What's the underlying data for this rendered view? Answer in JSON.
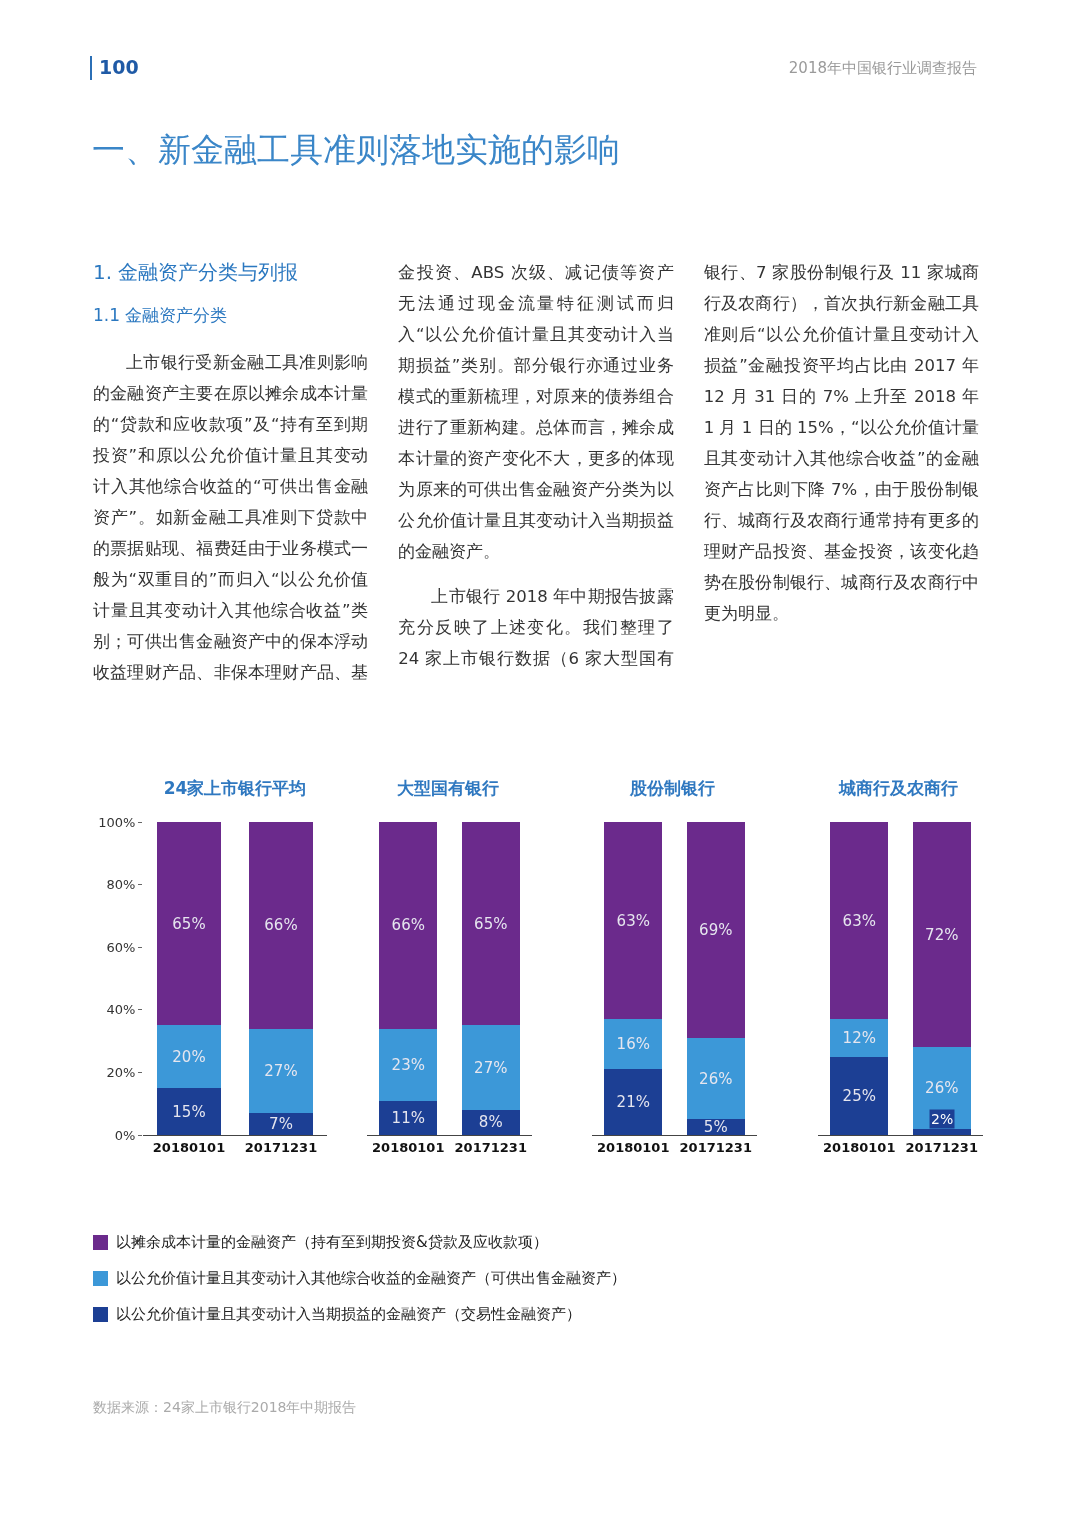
{
  "chart_data": [
    {
      "type": "other",
      "title": "一、新金融工具准则落地实施的影响",
      "annotations": [
        "100",
        "2018年中国银行业调查报告",
        "1. 金融资产分类与列报",
        "1.1 金融资产分类",
        "上市银行受新金融工具准则影响的金融资产主要在原以摊余成本计量的“贷款和应收款项”及“持有至到期投资”和原以公允价值计量且其变动计入其他综合收益的“可供出售金融资产”。如新金融工具准则下贷款中的票据贴现、福费廷由于业务模式一般为“双重目的”而归入“以公允价值计量且其变动计入其他综合收益”类别；可供出售金融资产中的保本浮动收益理财产品、非保本理财产品、基金投资、ABS 次级、减记债等资产无法通过现金流量特征测试而归入“以公允价值计量且其变动计入当期损益”类别。部分银行亦通过业务模式的重新梳理，对原来的债券组合进行了重新构建。总体而言，摊余成本计量的资产变化不大，更多的体现为原来的可供出售金融资产分类为以公允价值计量且其变动计入当期损益的金融资产。",
        "上市银行 2018 年中期报告披露充分反映了上述变化。我们整理了 24 家上市银行数据（6 家大型国有银行、7 家股份制银行及 11 家城商行及农商行），首次执行新金融工具准则后“以公允价值计量且变动计入损益”金融投资平均占比由 2017 年 12 月 31 日的 7% 上升至 2018 年 1 月 1 日的 15%，“以公允价值计量且其变动计入其他综合收益”的金融资产占比则下降 7%，由于股份制银行、城商行及农商行通常持有更多的理财产品投资、基金投资，该变化趋势在股份制银行、城商行及农商行中更为明显。",
        "数据来源：24家上市银行2018年中期报告"
      ]
    },
    {
      "type": "bar",
      "title": "24家上市银行平均",
      "categories": [
        "20180101",
        "20171231"
      ],
      "stacked": true,
      "legend": "bottom",
      "ylim": [
        0,
        100
      ],
      "yticks": [
        {
          "value": 0,
          "label": "0%"
        },
        {
          "value": 20,
          "label": "20%"
        },
        {
          "value": 40,
          "label": "40%"
        },
        {
          "value": 60,
          "label": "60%"
        },
        {
          "value": 80,
          "label": "80%"
        },
        {
          "value": 100,
          "label": "100%"
        }
      ],
      "series": [
        {
          "name": "以公允价值计量且其变动计入当期损益的金融资产（交易性金融资产）",
          "color": "#1c3f94",
          "values": [
            15,
            7
          ],
          "value_labels": [
            "15%",
            "7%"
          ]
        },
        {
          "name": "以公允价值计量且其变动计入其他综合收益的金融资产（可供出售金融资产）",
          "color": "#3c98d8",
          "values": [
            20,
            27
          ],
          "value_labels": [
            "20%",
            "27%"
          ]
        },
        {
          "name": "以摊余成本计量的金融资产（持有至到期投资&贷款及应收款项）",
          "color": "#6b2a8c",
          "values": [
            65,
            66
          ],
          "value_labels": [
            "65%",
            "66%"
          ]
        }
      ]
    },
    {
      "type": "bar",
      "title": "大型国有银行",
      "categories": [
        "20180101",
        "20171231"
      ],
      "stacked": true,
      "tick_labels": "x",
      "ylim": [
        0,
        100
      ],
      "series": [
        {
          "color": "#1c3f94",
          "values": [
            11,
            8
          ],
          "value_labels": [
            "11%",
            "8%"
          ]
        },
        {
          "color": "#3c98d8",
          "values": [
            23,
            27
          ],
          "value_labels": [
            "23%",
            "27%"
          ]
        },
        {
          "color": "#6b2a8c",
          "values": [
            66,
            65
          ],
          "value_labels": [
            "66%",
            "65%"
          ]
        }
      ]
    },
    {
      "type": "bar",
      "title": "股份制银行",
      "categories": [
        "20180101",
        "20171231"
      ],
      "stacked": true,
      "tick_labels": "x",
      "ylim": [
        0,
        100
      ],
      "series": [
        {
          "color": "#1c3f94",
          "values": [
            21,
            5
          ],
          "value_labels": [
            "21%",
            "5%"
          ]
        },
        {
          "color": "#3c98d8",
          "values": [
            16,
            26
          ],
          "value_labels": [
            "16%",
            "26%"
          ]
        },
        {
          "color": "#6b2a8c",
          "values": [
            63,
            69
          ],
          "value_labels": [
            "63%",
            "69%"
          ]
        }
      ]
    },
    {
      "type": "bar",
      "title": "城商行及农商行",
      "categories": [
        "20180101",
        "20171231"
      ],
      "stacked": true,
      "tick_labels": "x",
      "ylim": [
        0,
        100
      ],
      "series": [
        {
          "color": "#1c3f94",
          "values": [
            25,
            2
          ],
          "value_labels": [
            "25%",
            "2%"
          ]
        },
        {
          "color": "#3c98d8",
          "values": [
            12,
            26
          ],
          "value_labels": [
            "12%",
            "26%"
          ]
        },
        {
          "color": "#6b2a8c",
          "values": [
            63,
            72
          ],
          "value_labels": [
            "63%",
            "72%"
          ]
        }
      ]
    }
  ]
}
